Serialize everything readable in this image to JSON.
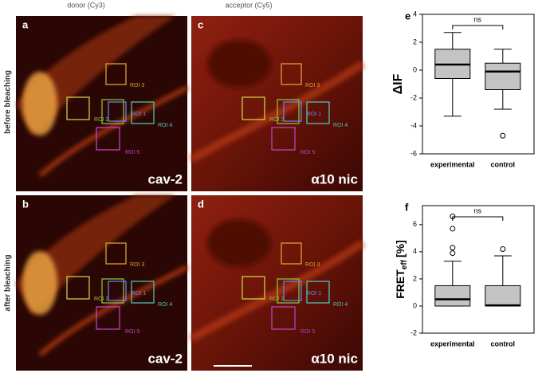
{
  "column_headers": [
    "donor (Cy3)",
    "acceptor (Cy5)"
  ],
  "row_labels": [
    "before bleaching",
    "after bleaching"
  ],
  "images": [
    {
      "letter": "a",
      "marker": "cav-2"
    },
    {
      "letter": "c",
      "marker": "α10 nic"
    },
    {
      "letter": "b",
      "marker": "cav-2"
    },
    {
      "letter": "d",
      "marker": "α10 nic"
    }
  ],
  "roi_labels": [
    "ROI 1",
    "ROI 2",
    "ROI 3",
    "ROI 4",
    "ROI 5"
  ],
  "chart_data": [
    {
      "type": "box",
      "panel": "e",
      "ylabel": "ΔIF",
      "annotation": "ns",
      "color": "#c4c4c4",
      "categories": [
        "experimental",
        "control"
      ],
      "boxes": [
        {
          "whisker_low": -3.3,
          "q1": -0.6,
          "median": 0.4,
          "q3": 1.5,
          "whisker_high": 2.7,
          "outliers": []
        },
        {
          "whisker_low": -2.8,
          "q1": -1.4,
          "median": -0.1,
          "q3": 0.5,
          "whisker_high": 1.5,
          "outliers": [
            -4.7
          ]
        }
      ],
      "ylim": [
        -6,
        4
      ],
      "yticks": [
        -6,
        -4,
        -2,
        0,
        2,
        4
      ]
    },
    {
      "type": "box",
      "panel": "f",
      "ylabel": {
        "main": "FRET",
        "sub": "eff",
        "suffix": "[%]"
      },
      "annotation": "ns",
      "color": "#c4c4c4",
      "categories": [
        "experimental",
        "control"
      ],
      "boxes": [
        {
          "whisker_low": 0,
          "q1": 0,
          "median": 0.5,
          "q3": 1.5,
          "whisker_high": 3.3,
          "outliers": [
            3.9,
            4.3,
            5.7,
            6.6
          ]
        },
        {
          "whisker_low": 0,
          "q1": 0,
          "median": 0.05,
          "q3": 1.5,
          "whisker_high": 3.7,
          "outliers": [
            4.2
          ]
        }
      ],
      "ylim": [
        -2,
        7.4
      ],
      "yticks": [
        -2,
        0,
        2,
        4,
        6
      ]
    }
  ]
}
